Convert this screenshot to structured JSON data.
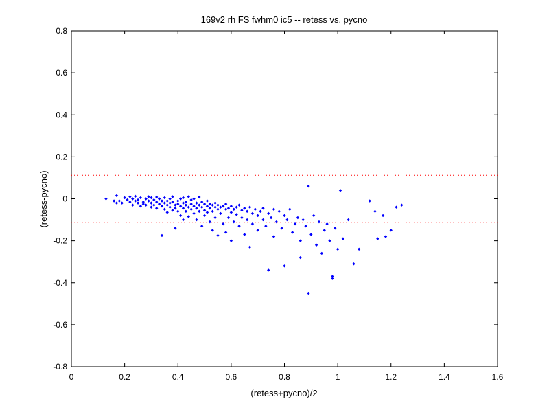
{
  "chart_data": {
    "type": "scatter",
    "title": "169v2 rh FS fwhm0 ic5 -- retess vs. pycno",
    "xlabel": "(retess+pycno)/2",
    "ylabel": "(retess-pycno)",
    "xlim": [
      0,
      1.6
    ],
    "ylim": [
      -0.8,
      0.8
    ],
    "x_ticks": [
      0,
      0.2,
      0.4,
      0.6,
      0.8,
      1,
      1.2,
      1.4,
      1.6
    ],
    "y_ticks": [
      -0.8,
      -0.6,
      -0.4,
      -0.2,
      0,
      0.2,
      0.4,
      0.6,
      0.8
    ],
    "x_tick_labels": [
      "0",
      "0.2",
      "0.4",
      "0.6",
      "0.8",
      "1",
      "1.2",
      "1.4",
      "1.6"
    ],
    "y_tick_labels": [
      "-0.8",
      "-0.6",
      "-0.4",
      "-0.2",
      "0",
      "0.2",
      "0.4",
      "0.6",
      "0.8"
    ],
    "grid": false,
    "legend": "none",
    "marker_color": "#0000ff",
    "reference_lines": [
      {
        "y": 0.112,
        "style": "dotted",
        "color": "#ff0000"
      },
      {
        "y": -0.112,
        "style": "dotted",
        "color": "#ff0000"
      }
    ],
    "series": [
      {
        "points": [
          [
            0.13,
            0.0
          ],
          [
            0.16,
            -0.01
          ],
          [
            0.17,
            0.015
          ],
          [
            0.17,
            -0.02
          ],
          [
            0.18,
            -0.01
          ],
          [
            0.19,
            -0.02
          ],
          [
            0.2,
            0.005
          ],
          [
            0.21,
            -0.005
          ],
          [
            0.22,
            -0.015
          ],
          [
            0.22,
            0.01
          ],
          [
            0.23,
            -0.03
          ],
          [
            0.23,
            0.0
          ],
          [
            0.24,
            -0.01
          ],
          [
            0.24,
            0.012
          ],
          [
            0.25,
            -0.02
          ],
          [
            0.25,
            -0.005
          ],
          [
            0.26,
            -0.035
          ],
          [
            0.26,
            0.005
          ],
          [
            0.27,
            -0.015
          ],
          [
            0.27,
            -0.025
          ],
          [
            0.28,
            0.0
          ],
          [
            0.28,
            -0.03
          ],
          [
            0.29,
            -0.01
          ],
          [
            0.29,
            0.01
          ],
          [
            0.3,
            -0.02
          ],
          [
            0.3,
            -0.04
          ],
          [
            0.3,
            0.005
          ],
          [
            0.31,
            -0.005
          ],
          [
            0.31,
            -0.03
          ],
          [
            0.32,
            -0.015
          ],
          [
            0.32,
            0.008
          ],
          [
            0.32,
            -0.045
          ],
          [
            0.33,
            -0.025
          ],
          [
            0.33,
            0.0
          ],
          [
            0.34,
            -0.035
          ],
          [
            0.34,
            -0.01
          ],
          [
            0.34,
            -0.175
          ],
          [
            0.35,
            -0.02
          ],
          [
            0.35,
            0.005
          ],
          [
            0.35,
            -0.05
          ],
          [
            0.36,
            -0.03
          ],
          [
            0.36,
            -0.01
          ],
          [
            0.36,
            -0.065
          ],
          [
            0.37,
            -0.04
          ],
          [
            0.37,
            0.0
          ],
          [
            0.37,
            -0.02
          ],
          [
            0.38,
            -0.055
          ],
          [
            0.38,
            -0.015
          ],
          [
            0.38,
            0.01
          ],
          [
            0.39,
            -0.03
          ],
          [
            0.39,
            -0.045
          ],
          [
            0.39,
            -0.14
          ],
          [
            0.4,
            -0.01
          ],
          [
            0.4,
            -0.025
          ],
          [
            0.4,
            -0.06
          ],
          [
            0.41,
            -0.035
          ],
          [
            0.41,
            0.0
          ],
          [
            0.41,
            -0.08
          ],
          [
            0.42,
            -0.02
          ],
          [
            0.42,
            -0.045
          ],
          [
            0.42,
            0.005
          ],
          [
            0.42,
            -0.1
          ],
          [
            0.43,
            -0.03
          ],
          [
            0.43,
            -0.06
          ],
          [
            0.43,
            -0.015
          ],
          [
            0.44,
            -0.04
          ],
          [
            0.44,
            0.01
          ],
          [
            0.44,
            -0.085
          ],
          [
            0.45,
            -0.025
          ],
          [
            0.45,
            -0.05
          ],
          [
            0.45,
            -0.005
          ],
          [
            0.46,
            -0.035
          ],
          [
            0.46,
            -0.07
          ],
          [
            0.46,
            0.0
          ],
          [
            0.47,
            -0.045
          ],
          [
            0.47,
            -0.02
          ],
          [
            0.47,
            -0.1
          ],
          [
            0.48,
            -0.03
          ],
          [
            0.48,
            -0.06
          ],
          [
            0.48,
            0.008
          ],
          [
            0.49,
            -0.04
          ],
          [
            0.49,
            -0.015
          ],
          [
            0.49,
            -0.13
          ],
          [
            0.5,
            -0.025
          ],
          [
            0.5,
            -0.055
          ],
          [
            0.5,
            -0.08
          ],
          [
            0.51,
            -0.035
          ],
          [
            0.51,
            -0.01
          ],
          [
            0.51,
            -0.065
          ],
          [
            0.52,
            -0.045
          ],
          [
            0.52,
            -0.025
          ],
          [
            0.52,
            -0.11
          ],
          [
            0.53,
            -0.03
          ],
          [
            0.53,
            -0.06
          ],
          [
            0.53,
            -0.15
          ],
          [
            0.54,
            -0.04
          ],
          [
            0.54,
            -0.02
          ],
          [
            0.54,
            -0.09
          ],
          [
            0.55,
            -0.05
          ],
          [
            0.55,
            -0.03
          ],
          [
            0.55,
            -0.175
          ],
          [
            0.56,
            -0.04
          ],
          [
            0.56,
            -0.07
          ],
          [
            0.57,
            -0.035
          ],
          [
            0.57,
            -0.12
          ],
          [
            0.58,
            -0.05
          ],
          [
            0.58,
            -0.025
          ],
          [
            0.58,
            -0.16
          ],
          [
            0.59,
            -0.045
          ],
          [
            0.59,
            -0.09
          ],
          [
            0.6,
            -0.035
          ],
          [
            0.6,
            -0.065
          ],
          [
            0.6,
            -0.2
          ],
          [
            0.61,
            -0.05
          ],
          [
            0.61,
            -0.11
          ],
          [
            0.62,
            -0.04
          ],
          [
            0.62,
            -0.075
          ],
          [
            0.63,
            -0.03
          ],
          [
            0.63,
            -0.13
          ],
          [
            0.64,
            -0.055
          ],
          [
            0.64,
            -0.09
          ],
          [
            0.65,
            -0.045
          ],
          [
            0.65,
            -0.17
          ],
          [
            0.66,
            -0.06
          ],
          [
            0.66,
            -0.1
          ],
          [
            0.67,
            -0.04
          ],
          [
            0.67,
            -0.23
          ],
          [
            0.68,
            -0.07
          ],
          [
            0.68,
            -0.12
          ],
          [
            0.69,
            -0.05
          ],
          [
            0.7,
            -0.08
          ],
          [
            0.7,
            -0.15
          ],
          [
            0.71,
            -0.06
          ],
          [
            0.72,
            -0.1
          ],
          [
            0.72,
            -0.045
          ],
          [
            0.73,
            -0.13
          ],
          [
            0.74,
            -0.07
          ],
          [
            0.74,
            -0.34
          ],
          [
            0.75,
            -0.09
          ],
          [
            0.76,
            -0.05
          ],
          [
            0.76,
            -0.18
          ],
          [
            0.77,
            -0.11
          ],
          [
            0.78,
            -0.06
          ],
          [
            0.79,
            -0.14
          ],
          [
            0.8,
            -0.08
          ],
          [
            0.8,
            -0.32
          ],
          [
            0.81,
            -0.1
          ],
          [
            0.82,
            -0.05
          ],
          [
            0.83,
            -0.16
          ],
          [
            0.84,
            -0.12
          ],
          [
            0.85,
            -0.09
          ],
          [
            0.86,
            -0.28
          ],
          [
            0.86,
            -0.2
          ],
          [
            0.87,
            -0.1
          ],
          [
            0.88,
            -0.13
          ],
          [
            0.89,
            0.06
          ],
          [
            0.89,
            -0.45
          ],
          [
            0.9,
            -0.17
          ],
          [
            0.91,
            -0.08
          ],
          [
            0.92,
            -0.22
          ],
          [
            0.93,
            -0.11
          ],
          [
            0.94,
            -0.26
          ],
          [
            0.95,
            -0.15
          ],
          [
            0.96,
            -0.12
          ],
          [
            0.97,
            -0.2
          ],
          [
            0.98,
            -0.37
          ],
          [
            0.98,
            -0.38
          ],
          [
            0.99,
            -0.14
          ],
          [
            1.0,
            -0.24
          ],
          [
            1.01,
            0.04
          ],
          [
            1.02,
            -0.19
          ],
          [
            1.04,
            -0.1
          ],
          [
            1.06,
            -0.31
          ],
          [
            1.08,
            -0.24
          ],
          [
            1.12,
            -0.01
          ],
          [
            1.14,
            -0.06
          ],
          [
            1.15,
            -0.19
          ],
          [
            1.17,
            -0.08
          ],
          [
            1.18,
            -0.18
          ],
          [
            1.2,
            -0.15
          ],
          [
            1.22,
            -0.04
          ],
          [
            1.24,
            -0.03
          ]
        ]
      }
    ]
  }
}
